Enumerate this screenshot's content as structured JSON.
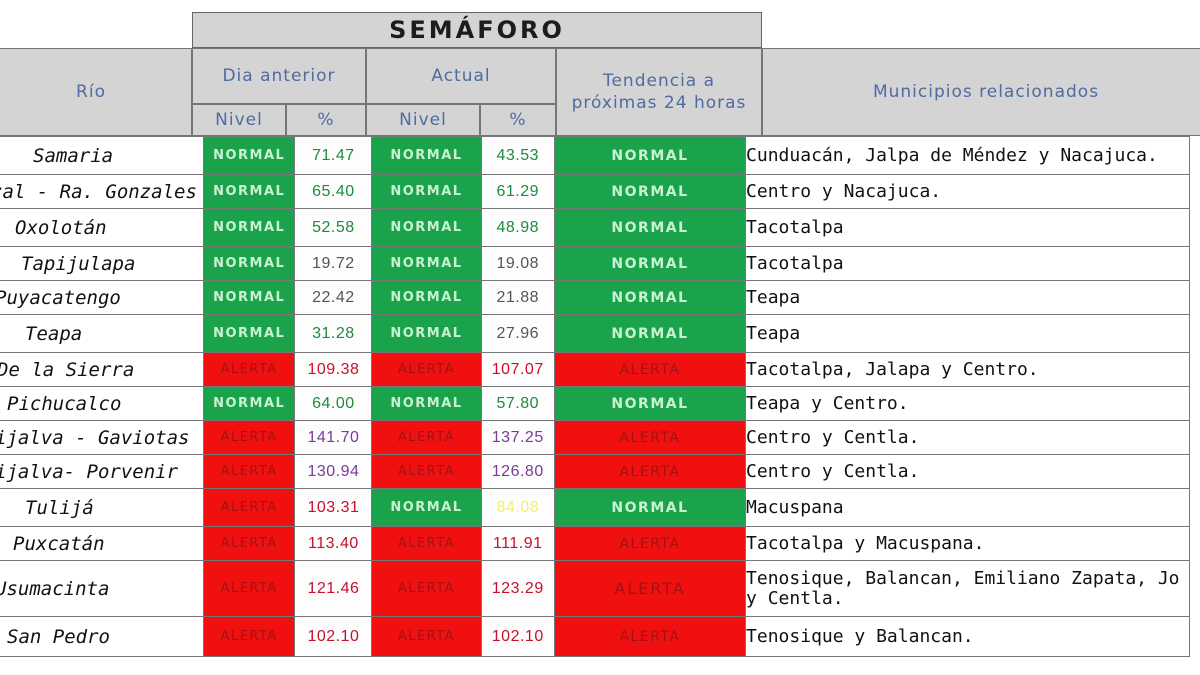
{
  "header": {
    "semaforo": "SEMÁFORO",
    "rio": "Río",
    "dia_anterior": "Dia anterior",
    "actual": "Actual",
    "tendencia": "Tendencia a próximas 24 horas",
    "municipios": "Municipios relacionados",
    "nivel": "Nivel",
    "pct": "%"
  },
  "colors": {
    "normal_bg": "#1aa34a",
    "alerta_bg": "#f01010",
    "header_bg": "#d4d4d4",
    "header_text": "#4f6ba3"
  },
  "rows": [
    {
      "rio": "Samaria",
      "prev_nivel": "NORMAL",
      "prev_pct": "71.47",
      "prev_pct_color": "#1e8c3c",
      "act_nivel": "NORMAL",
      "act_pct": "43.53",
      "act_pct_color": "#1e8c3c",
      "tendencia": "NORMAL",
      "municipios": "Cunduacán, Jalpa de Méndez y Nacajuca."
    },
    {
      "rio": "zal - Ra. Gonzales",
      "prev_nivel": "NORMAL",
      "prev_pct": "65.40",
      "prev_pct_color": "#1e8c3c",
      "act_nivel": "NORMAL",
      "act_pct": "61.29",
      "act_pct_color": "#1e8c3c",
      "tendencia": "NORMAL",
      "municipios": "Centro y Nacajuca."
    },
    {
      "rio": "Oxolotán",
      "prev_nivel": "NORMAL",
      "prev_pct": "52.58",
      "prev_pct_color": "#1e8c3c",
      "act_nivel": "NORMAL",
      "act_pct": "48.98",
      "act_pct_color": "#1e8c3c",
      "tendencia": "NORMAL",
      "municipios": "Tacotalpa"
    },
    {
      "rio": "Tapijulapa",
      "prev_nivel": "NORMAL",
      "prev_pct": "19.72",
      "prev_pct_color": "#555555",
      "act_nivel": "NORMAL",
      "act_pct": "19.08",
      "act_pct_color": "#555555",
      "tendencia": "NORMAL",
      "municipios": "Tacotalpa"
    },
    {
      "rio": "Puyacatengo",
      "prev_nivel": "NORMAL",
      "prev_pct": "22.42",
      "prev_pct_color": "#555555",
      "act_nivel": "NORMAL",
      "act_pct": "21.88",
      "act_pct_color": "#555555",
      "tendencia": "NORMAL",
      "municipios": "Teapa"
    },
    {
      "rio": "Teapa",
      "prev_nivel": "NORMAL",
      "prev_pct": "31.28",
      "prev_pct_color": "#1e8c3c",
      "act_nivel": "NORMAL",
      "act_pct": "27.96",
      "act_pct_color": "#555555",
      "tendencia": "NORMAL",
      "municipios": "Teapa"
    },
    {
      "rio": "De la Sierra",
      "prev_nivel": "ALERTA",
      "prev_pct": "109.38",
      "prev_pct_color": "#c8102e",
      "act_nivel": "ALERTA",
      "act_pct": "107.07",
      "act_pct_color": "#c8102e",
      "tendencia": "ALERTA",
      "municipios": "Tacotalpa, Jalapa y Centro."
    },
    {
      "rio": "Pichucalco",
      "prev_nivel": "NORMAL",
      "prev_pct": "64.00",
      "prev_pct_color": "#1e8c3c",
      "act_nivel": "NORMAL",
      "act_pct": "57.80",
      "act_pct_color": "#1e8c3c",
      "tendencia": "NORMAL",
      "municipios": "Teapa y Centro."
    },
    {
      "rio": "ijalva - Gaviotas",
      "prev_nivel": "ALERTA",
      "prev_pct": "141.70",
      "prev_pct_color": "#7a3a9a",
      "act_nivel": "ALERTA",
      "act_pct": "137.25",
      "act_pct_color": "#7a3a9a",
      "tendencia": "ALERTA",
      "municipios": "Centro y Centla."
    },
    {
      "rio": "ijalva- Porvenir",
      "prev_nivel": "ALERTA",
      "prev_pct": "130.94",
      "prev_pct_color": "#7a3a9a",
      "act_nivel": "ALERTA",
      "act_pct": "126.80",
      "act_pct_color": "#7a3a9a",
      "tendencia": "ALERTA",
      "municipios": "Centro y Centla."
    },
    {
      "rio": "Tulijá",
      "prev_nivel": "ALERTA",
      "prev_pct": "103.31",
      "prev_pct_color": "#c8102e",
      "act_nivel": "NORMAL",
      "act_pct": "84.08",
      "act_pct_color": "#f2f26a",
      "tendencia": "NORMAL",
      "municipios": "Macuspana"
    },
    {
      "rio": "Puxcatán",
      "prev_nivel": "ALERTA",
      "prev_pct": "113.40",
      "prev_pct_color": "#c8102e",
      "act_nivel": "ALERTA",
      "act_pct": "111.91",
      "act_pct_color": "#c8102e",
      "tendencia": "ALERTA",
      "municipios": "Tacotalpa y Macuspana."
    },
    {
      "rio": "Usumacinta",
      "prev_nivel": "ALERTA",
      "prev_pct": "121.46",
      "prev_pct_color": "#c8102e",
      "act_nivel": "ALERTA",
      "act_pct": "123.29",
      "act_pct_color": "#c8102e",
      "tendencia": "ALERTA",
      "municipios": "Tenosique, Balancan, Emiliano Zapata, Jo y Centla."
    },
    {
      "rio": "San Pedro",
      "prev_nivel": "ALERTA",
      "prev_pct": "102.10",
      "prev_pct_color": "#c8102e",
      "act_nivel": "ALERTA",
      "act_pct": "102.10",
      "act_pct_color": "#c8102e",
      "tendencia": "ALERTA",
      "municipios": "Tenosique y Balancan."
    }
  ]
}
